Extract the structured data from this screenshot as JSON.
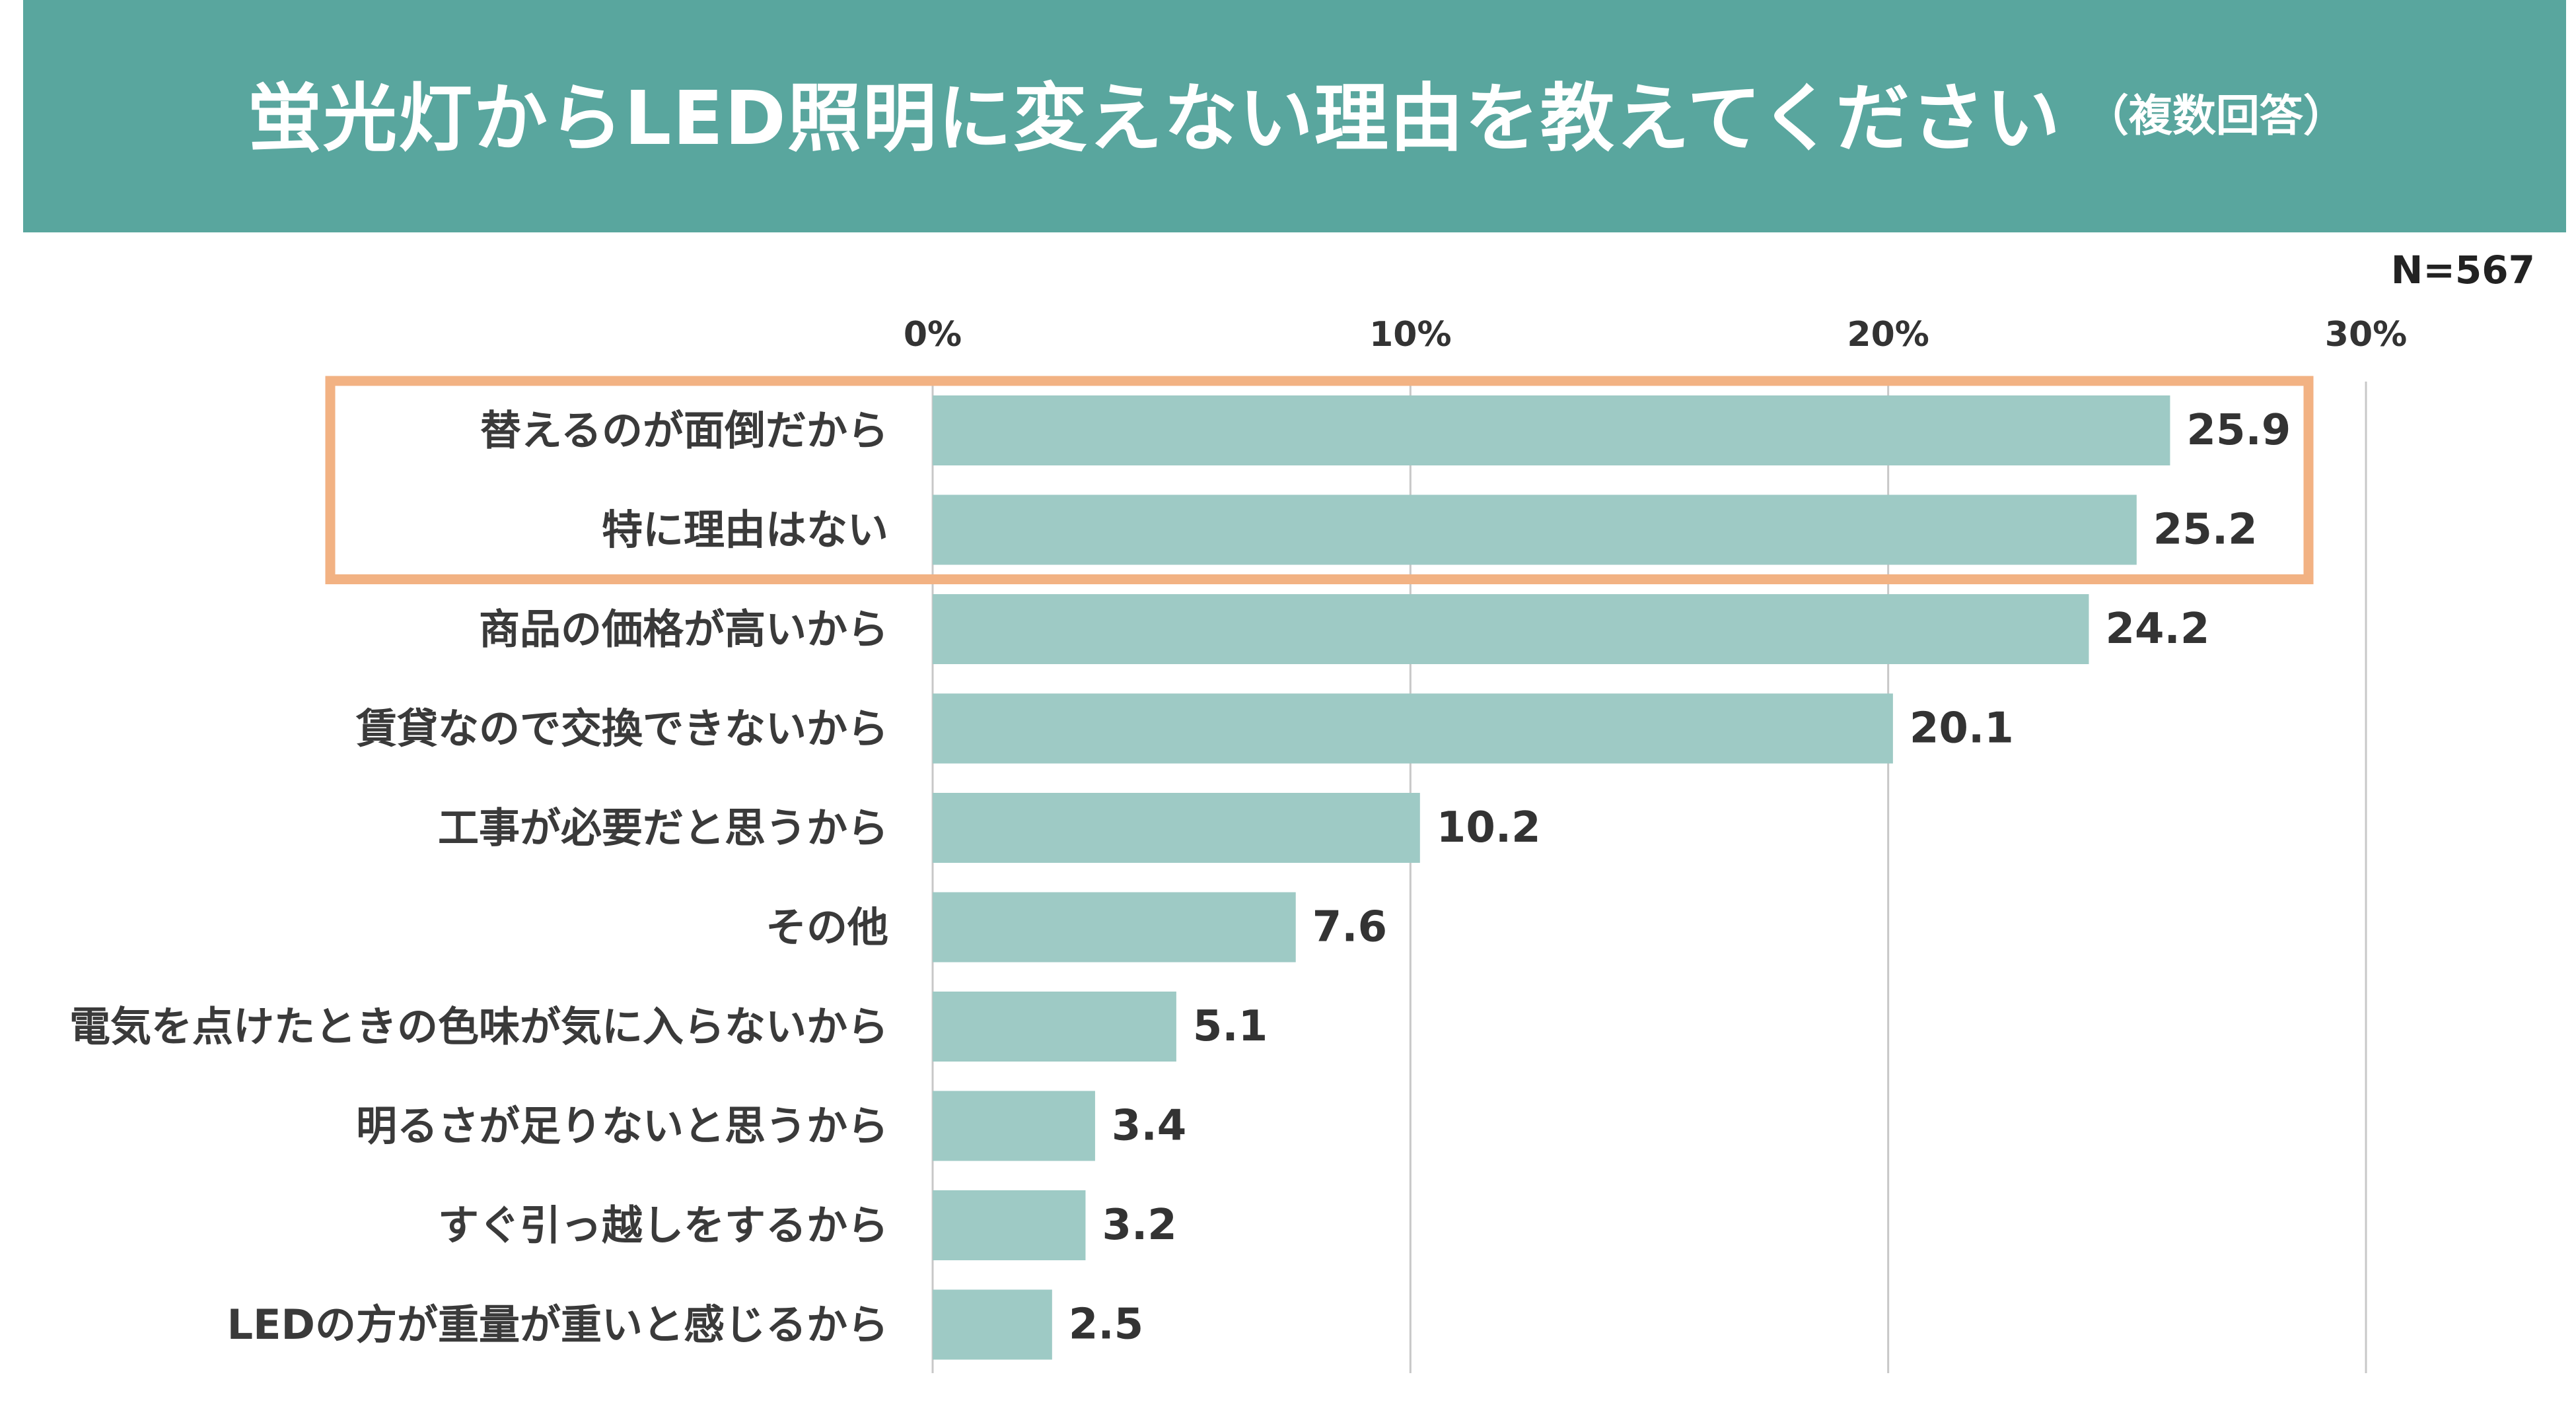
{
  "header": {
    "title": "蛍光灯からLED照明に変えない理由を教えてください",
    "subtitle": "（複数回答）"
  },
  "sample_size": "N=567",
  "colors": {
    "header_bg": "#59a69e",
    "bar": "#9ecac5",
    "highlight": "#f2b283",
    "grid": "#c8c8c8"
  },
  "chart_data": {
    "type": "bar",
    "orientation": "horizontal",
    "title": "蛍光灯からLED照明に変えない理由を教えてください（複数回答）",
    "xlabel": "",
    "ylabel": "",
    "unit": "%",
    "xlim": [
      0,
      30
    ],
    "ticks": [
      0,
      10,
      20,
      30
    ],
    "tick_labels": [
      "0%",
      "10%",
      "20%",
      "30%"
    ],
    "categories": [
      "替えるのが面倒だから",
      "特に理由はない",
      "商品の価格が高いから",
      "賃貸なので交換できないから",
      "工事が必要だと思うから",
      "その他",
      "電気を点けたときの色味が気に入らないから",
      "明るさが足りないと思うから",
      "すぐ引っ越しをするから",
      "LEDの方が重量が重いと感じるから"
    ],
    "values": [
      25.9,
      25.2,
      24.2,
      20.1,
      10.2,
      7.6,
      5.1,
      3.4,
      3.2,
      2.5
    ],
    "value_labels": [
      "25.9",
      "25.2",
      "24.2",
      "20.1",
      "10.2",
      "7.6",
      "5.1",
      "3.4",
      "3.2",
      "2.5"
    ],
    "highlighted_categories": [
      "替えるのが面倒だから",
      "特に理由はない"
    ]
  }
}
